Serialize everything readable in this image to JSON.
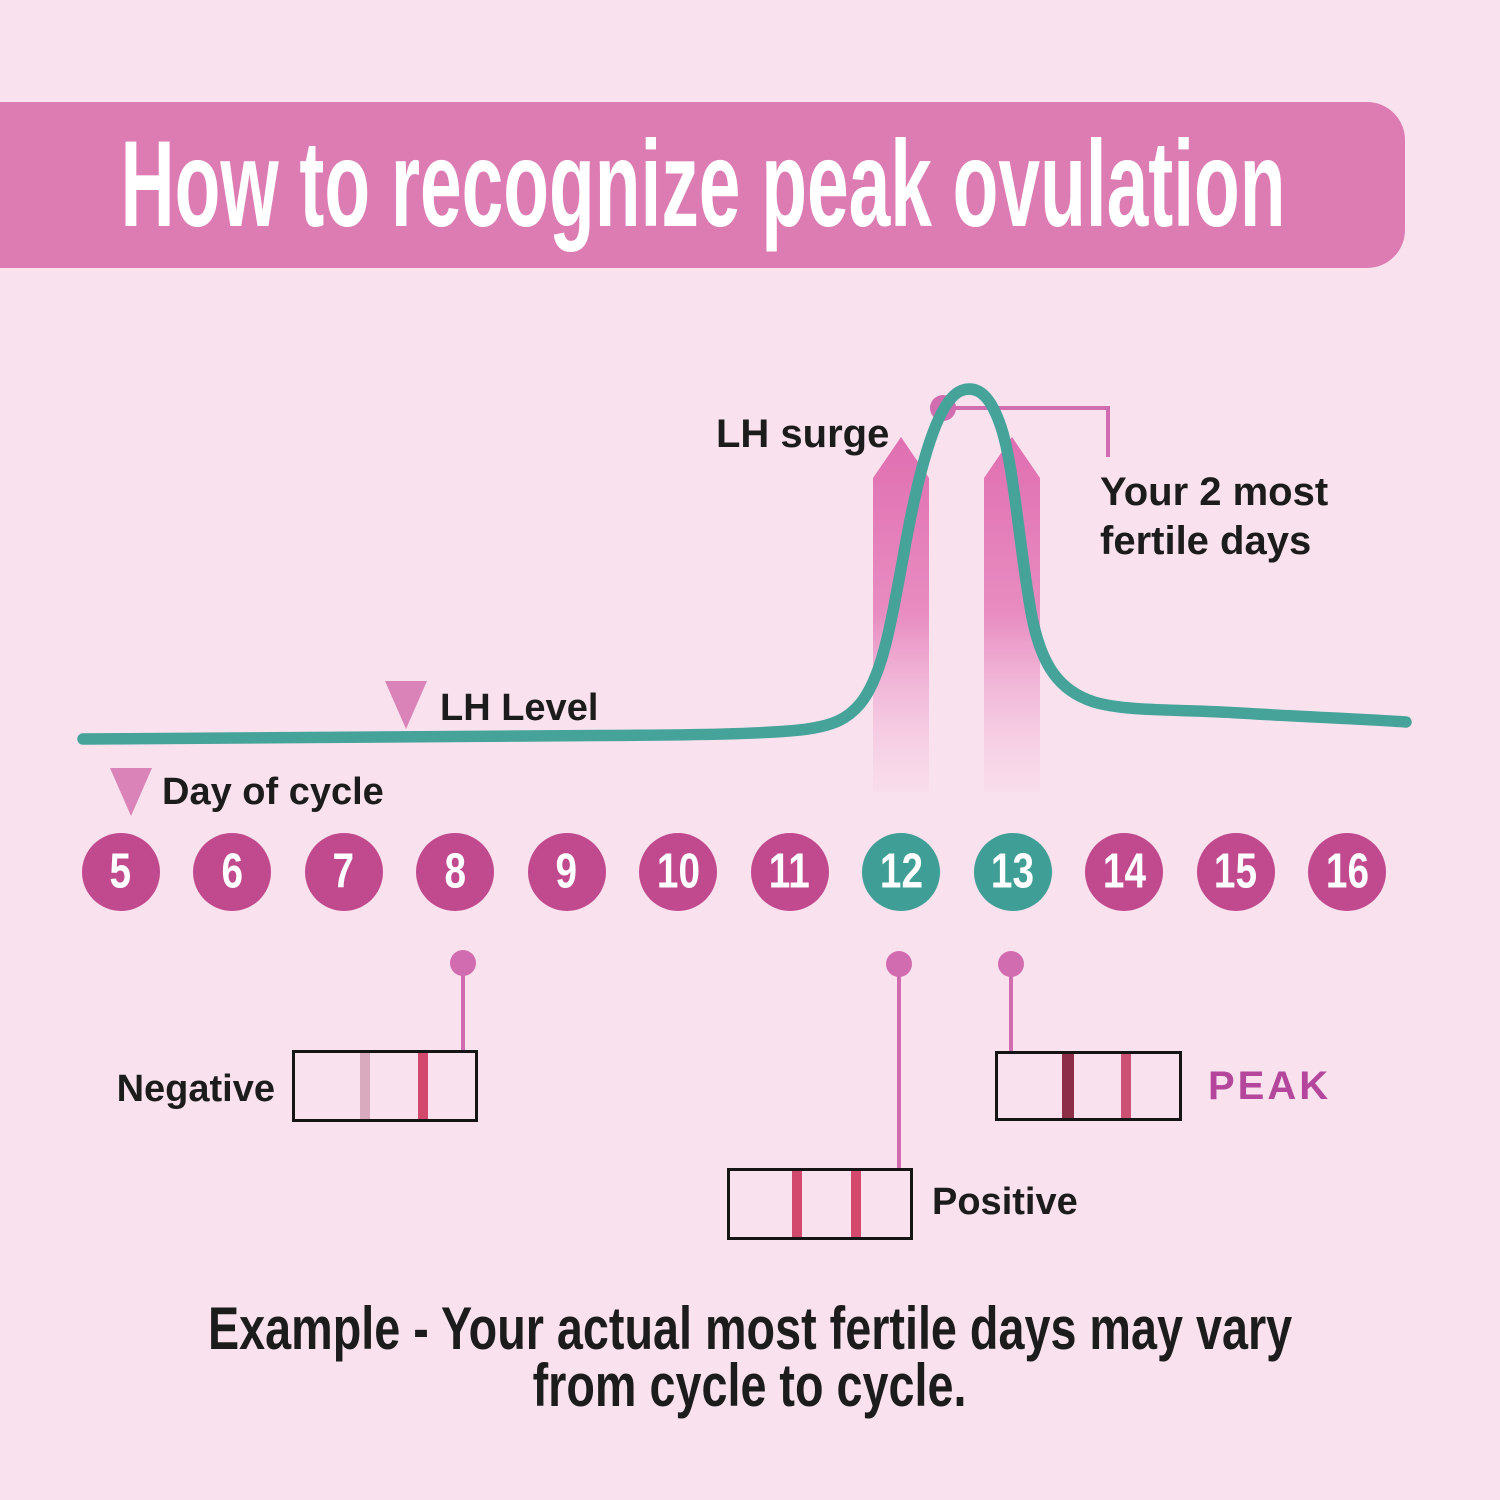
{
  "title": "How to recognize peak ovulation",
  "labels": {
    "lh_surge": "LH surge",
    "fertile_line1": "Your 2 most",
    "fertile_line2": "fertile days",
    "lh_level": "LH Level",
    "day_of_cycle": "Day of cycle"
  },
  "days": [
    {
      "label": "5",
      "highlight": false
    },
    {
      "label": "6",
      "highlight": false
    },
    {
      "label": "7",
      "highlight": false
    },
    {
      "label": "8",
      "highlight": false
    },
    {
      "label": "9",
      "highlight": false
    },
    {
      "label": "10",
      "highlight": false
    },
    {
      "label": "11",
      "highlight": false
    },
    {
      "label": "12",
      "highlight": true
    },
    {
      "label": "13",
      "highlight": true
    },
    {
      "label": "14",
      "highlight": false
    },
    {
      "label": "15",
      "highlight": false
    },
    {
      "label": "16",
      "highlight": false
    }
  ],
  "tests": {
    "negative": {
      "label": "Negative",
      "day": "8"
    },
    "positive": {
      "label": "Positive",
      "day": "12"
    },
    "peak": {
      "label": "PEAK",
      "day": "13"
    }
  },
  "footer": {
    "line1": "Example - Your actual most fertile days may vary",
    "line2": "from cycle to cycle."
  },
  "colors": {
    "background": "#f9e2ee",
    "banner": "#dc7cb3",
    "title_text": "#ffffff",
    "text": "#1c1c1c",
    "curve": "#45a39a",
    "day_circle": "#c14a8f",
    "day_circle_highlight": "#3f9e96",
    "accent_pink": "#d26cb0",
    "marker_pink": "#d983b8",
    "strip_border": "#151515",
    "test_line": "#d3496d",
    "test_line_faint": "#d9a9bd",
    "test_line_dark": "#8e2d48",
    "peak_text": "#b4479b"
  },
  "chart_data": {
    "type": "line",
    "title": "LH level across cycle days",
    "xlabel": "Day of cycle",
    "ylabel": "LH Level",
    "x": [
      5,
      6,
      7,
      8,
      9,
      10,
      11,
      12,
      13,
      14,
      15,
      16
    ],
    "values_relative": [
      0.1,
      0.1,
      0.1,
      0.1,
      0.1,
      0.1,
      0.15,
      4.4,
      6.7,
      0.9,
      0.7,
      0.6
    ],
    "ylim_relative": [
      0,
      10
    ],
    "peak_between_days": [
      12,
      13
    ],
    "fertile_days": [
      12,
      13
    ],
    "grid": false,
    "legend": false,
    "annotations": [
      "LH surge",
      "Your 2 most fertile days"
    ],
    "test_results": [
      {
        "day": 8,
        "result": "Negative"
      },
      {
        "day": 12,
        "result": "Positive"
      },
      {
        "day": 13,
        "result": "PEAK"
      }
    ]
  }
}
